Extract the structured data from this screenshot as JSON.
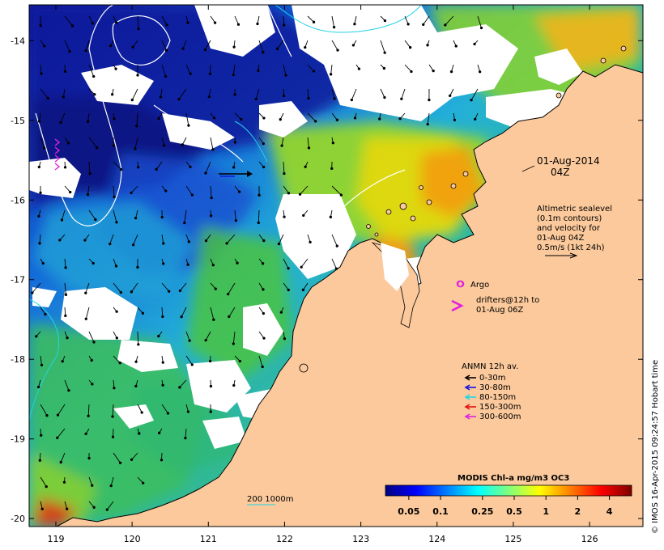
{
  "map": {
    "x_ticks": [
      119,
      120,
      121,
      122,
      123,
      124,
      125,
      126
    ],
    "y_ticks": [
      -14,
      -15,
      -16,
      -17,
      -18,
      -19,
      -20
    ],
    "lon_range": [
      118.65,
      126.7
    ],
    "lat_range": [
      -20.1,
      -13.55
    ],
    "colors": {
      "land": "#fbc99b",
      "cloud": "#ffffff",
      "frame": "#000000",
      "contour": "#ffffff",
      "isobath": "#22d3e6"
    }
  },
  "annotations": {
    "date": "01-Aug-2014",
    "time": "04Z",
    "altimetry_lines": [
      "Altimetric sealevel",
      "(0.1m contours)",
      "and velocity for",
      "01-Aug 04Z",
      "0.5m/s (1kt 24h)"
    ],
    "argo_label": "Argo",
    "drifters_lines": [
      "drifters@12h to",
      "01-Aug 06Z"
    ],
    "anmn_title": "ANMN 12h av.",
    "anmn_items": [
      {
        "label": "0-30m",
        "color": "#000000"
      },
      {
        "label": "30-80m",
        "color": "#1515e0"
      },
      {
        "label": "80-150m",
        "color": "#22d3e6"
      },
      {
        "label": "150-300m",
        "color": "#e01010"
      },
      {
        "label": "300-600m",
        "color": "#e020e0"
      }
    ],
    "isobath_label": "200  1000m"
  },
  "colorbar": {
    "title": "MODIS Chl-a mg/m3 OC3",
    "tick_labels": [
      "0.05",
      "0.1",
      "0.25",
      "0.5",
      "1",
      "2",
      "4"
    ],
    "tick_values": [
      0.05,
      0.1,
      0.25,
      0.5,
      1,
      2,
      4
    ],
    "range": [
      0.03,
      6.5
    ],
    "colors": [
      "#00007f",
      "#0000ff",
      "#007fff",
      "#00ffff",
      "#7fff7f",
      "#ffff00",
      "#ff7f00",
      "#ff0000",
      "#7f0000"
    ]
  },
  "credit": "© IMOS 16-Apr-2015 09:24:57 Hobart time"
}
